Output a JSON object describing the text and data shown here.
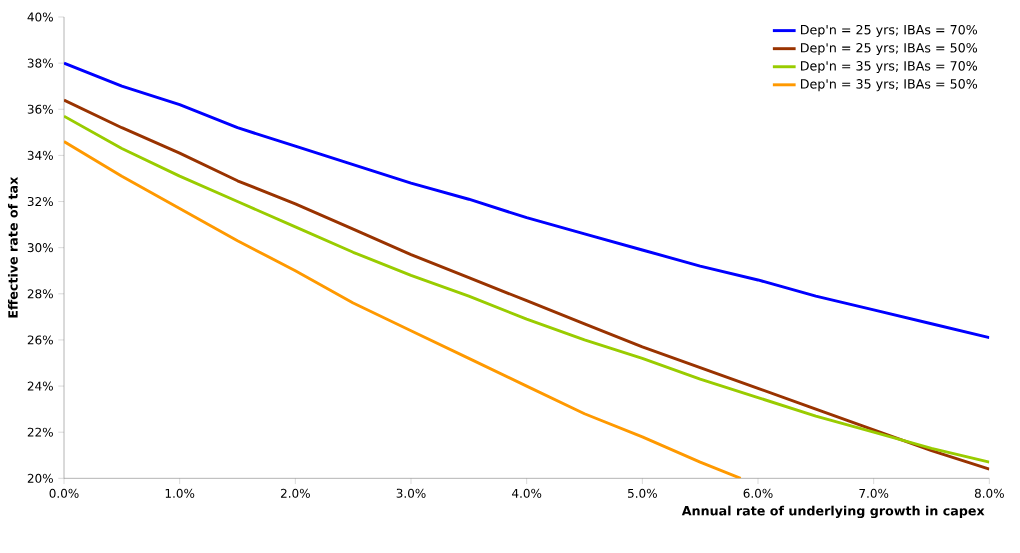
{
  "chart_data": {
    "type": "line",
    "xlabel": "Annual rate of underlying growth in capex",
    "ylabel": "Effective rate of tax",
    "x": [
      0,
      0.5,
      1,
      1.5,
      2,
      2.5,
      3,
      3.5,
      4,
      4.5,
      5,
      5.5,
      6,
      6.5,
      7,
      7.5,
      8
    ],
    "series": [
      {
        "name": "Dep'n = 25 yrs;  IBAs = 70%",
        "color": "#0000ff",
        "values": [
          38.0,
          37.0,
          36.2,
          35.2,
          34.4,
          33.6,
          32.8,
          32.1,
          31.3,
          30.6,
          29.9,
          29.2,
          28.6,
          27.9,
          27.3,
          26.7,
          26.1
        ]
      },
      {
        "name": "Dep'n = 25 yrs;  IBAs = 50%",
        "color": "#993300",
        "values": [
          36.4,
          35.2,
          34.1,
          32.9,
          31.9,
          30.8,
          29.7,
          28.7,
          27.7,
          26.7,
          25.7,
          24.8,
          23.9,
          23.0,
          22.1,
          21.2,
          20.4
        ]
      },
      {
        "name": "Dep'n = 35 yrs;  IBAs = 70%",
        "color": "#99cc00",
        "values": [
          35.7,
          34.3,
          33.1,
          32.0,
          30.9,
          29.8,
          28.8,
          27.9,
          26.9,
          26.0,
          25.2,
          24.3,
          23.5,
          22.7,
          22.0,
          21.3,
          20.7
        ]
      },
      {
        "name": "Dep'n = 35 yrs;  IBAs = 50%",
        "color": "#ff9900",
        "x": [
          0,
          0.5,
          1,
          1.5,
          2,
          2.5,
          3,
          3.5,
          4,
          4.5,
          5,
          5.5,
          5.85
        ],
        "values": [
          34.6,
          33.1,
          31.7,
          30.3,
          29.0,
          27.6,
          26.4,
          25.2,
          24.0,
          22.8,
          21.8,
          20.7,
          20.0
        ]
      }
    ],
    "xlim": [
      0,
      8
    ],
    "xticks": [
      {
        "value": 0,
        "label": "0.0%"
      },
      {
        "value": 1,
        "label": "1.0%"
      },
      {
        "value": 2,
        "label": "2.0%"
      },
      {
        "value": 3,
        "label": "3.0%"
      },
      {
        "value": 4,
        "label": "4.0%"
      },
      {
        "value": 5,
        "label": "5.0%"
      },
      {
        "value": 6,
        "label": "6.0%"
      },
      {
        "value": 7,
        "label": "7.0%"
      },
      {
        "value": 8,
        "label": "8.0%"
      }
    ],
    "ylim": [
      20,
      40
    ],
    "yticks": [
      {
        "value": 20,
        "label": "20%"
      },
      {
        "value": 22,
        "label": "22%"
      },
      {
        "value": 24,
        "label": "24%"
      },
      {
        "value": 26,
        "label": "26%"
      },
      {
        "value": 28,
        "label": "28%"
      },
      {
        "value": 30,
        "label": "30%"
      },
      {
        "value": 32,
        "label": "32%"
      },
      {
        "value": 34,
        "label": "34%"
      },
      {
        "value": 36,
        "label": "36%"
      },
      {
        "value": 38,
        "label": "38%"
      },
      {
        "value": 40,
        "label": "40%"
      }
    ],
    "grid": false,
    "legend": "top right",
    "marker": "none",
    "line_style": "solid"
  }
}
